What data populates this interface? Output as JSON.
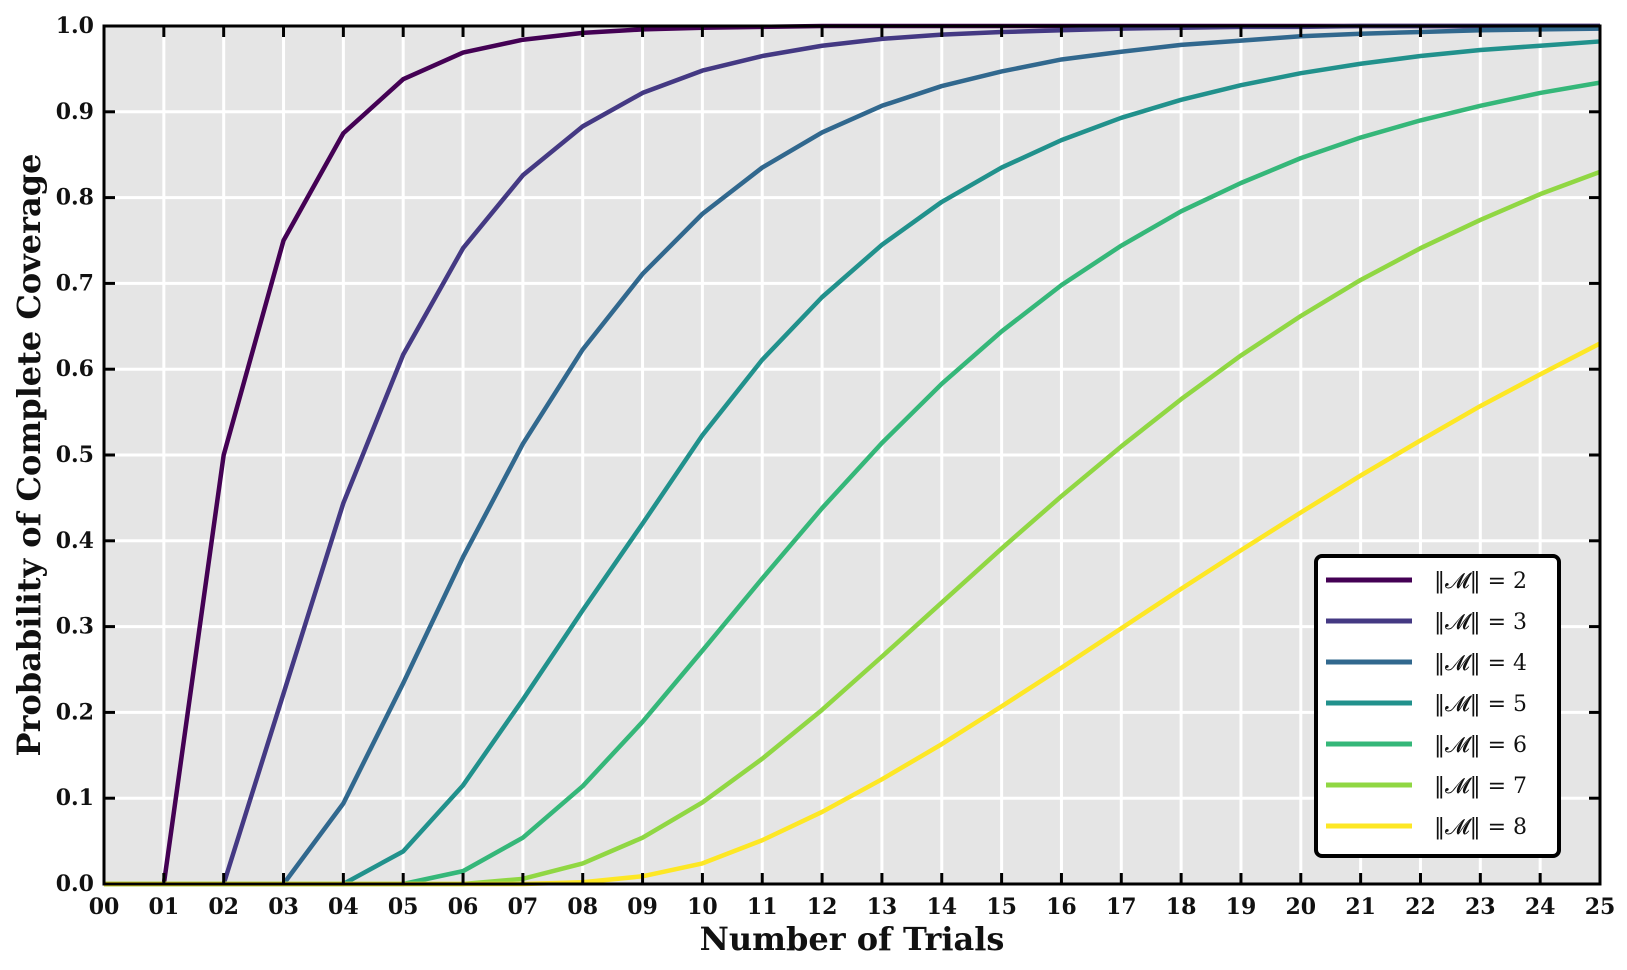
{
  "chart_data": {
    "type": "line",
    "title": "",
    "xlabel": "Number of Trials",
    "ylabel": "Probability of Complete Coverage",
    "xlim": [
      0,
      25
    ],
    "ylim": [
      0,
      1
    ],
    "grid": true,
    "legend_position": "bottom-right",
    "x_ticks": [
      "00",
      "01",
      "02",
      "03",
      "04",
      "05",
      "06",
      "07",
      "08",
      "09",
      "10",
      "11",
      "12",
      "13",
      "14",
      "15",
      "16",
      "17",
      "18",
      "19",
      "20",
      "21",
      "22",
      "23",
      "24",
      "25"
    ],
    "y_ticks": [
      "0.0",
      "0.1",
      "0.2",
      "0.3",
      "0.4",
      "0.5",
      "0.6",
      "0.7",
      "0.8",
      "0.9",
      "1.0"
    ],
    "x": [
      0,
      1,
      2,
      3,
      4,
      5,
      6,
      7,
      8,
      9,
      10,
      11,
      12,
      13,
      14,
      15,
      16,
      17,
      18,
      19,
      20,
      21,
      22,
      23,
      24,
      25
    ],
    "series": [
      {
        "name": "‖𝓜‖ = 2",
        "color": "#440154",
        "values": [
          0,
          0,
          0.5,
          0.75,
          0.875,
          0.938,
          0.969,
          0.984,
          0.992,
          0.996,
          0.998,
          0.999,
          1.0,
          1.0,
          1.0,
          1.0,
          1.0,
          1.0,
          1.0,
          1.0,
          1.0,
          1.0,
          1.0,
          1.0,
          1.0,
          1.0
        ]
      },
      {
        "name": "‖𝓜‖ = 3",
        "color": "#443983",
        "values": [
          0,
          0,
          0,
          0.222,
          0.444,
          0.617,
          0.741,
          0.826,
          0.883,
          0.922,
          0.948,
          0.965,
          0.977,
          0.985,
          0.99,
          0.993,
          0.995,
          0.997,
          0.998,
          0.999,
          0.999,
          1.0,
          1.0,
          1.0,
          1.0,
          1.0
        ]
      },
      {
        "name": "‖𝓜‖ = 4",
        "color": "#31688e",
        "values": [
          0,
          0,
          0,
          0,
          0.094,
          0.234,
          0.381,
          0.513,
          0.623,
          0.711,
          0.781,
          0.835,
          0.876,
          0.907,
          0.93,
          0.947,
          0.961,
          0.97,
          0.978,
          0.983,
          0.988,
          0.991,
          0.993,
          0.995,
          0.996,
          0.997
        ]
      },
      {
        "name": "‖𝓜‖ = 5",
        "color": "#21918c",
        "values": [
          0,
          0,
          0,
          0,
          0,
          0.038,
          0.115,
          0.215,
          0.319,
          0.42,
          0.523,
          0.611,
          0.684,
          0.745,
          0.795,
          0.835,
          0.867,
          0.893,
          0.914,
          0.931,
          0.945,
          0.956,
          0.965,
          0.972,
          0.977,
          0.982
        ]
      },
      {
        "name": "‖𝓜‖ = 6",
        "color": "#35b779",
        "values": [
          0,
          0,
          0,
          0,
          0,
          0,
          0.015,
          0.054,
          0.114,
          0.189,
          0.272,
          0.356,
          0.438,
          0.514,
          0.583,
          0.644,
          0.698,
          0.744,
          0.784,
          0.817,
          0.846,
          0.87,
          0.89,
          0.907,
          0.922,
          0.934
        ]
      },
      {
        "name": "‖𝓜‖ = 7",
        "color": "#90d743",
        "values": [
          0,
          0,
          0,
          0,
          0,
          0,
          0,
          0.006,
          0.024,
          0.054,
          0.095,
          0.146,
          0.203,
          0.265,
          0.328,
          0.391,
          0.452,
          0.51,
          0.565,
          0.616,
          0.662,
          0.704,
          0.741,
          0.774,
          0.804,
          0.83
        ]
      },
      {
        "name": "‖𝓜‖ = 8",
        "color": "#fde725",
        "values": [
          0,
          0,
          0,
          0,
          0,
          0,
          0,
          0,
          0.002,
          0.009,
          0.024,
          0.051,
          0.084,
          0.122,
          0.163,
          0.207,
          0.252,
          0.298,
          0.344,
          0.389,
          0.433,
          0.476,
          0.517,
          0.557,
          0.594,
          0.63
        ]
      }
    ]
  }
}
